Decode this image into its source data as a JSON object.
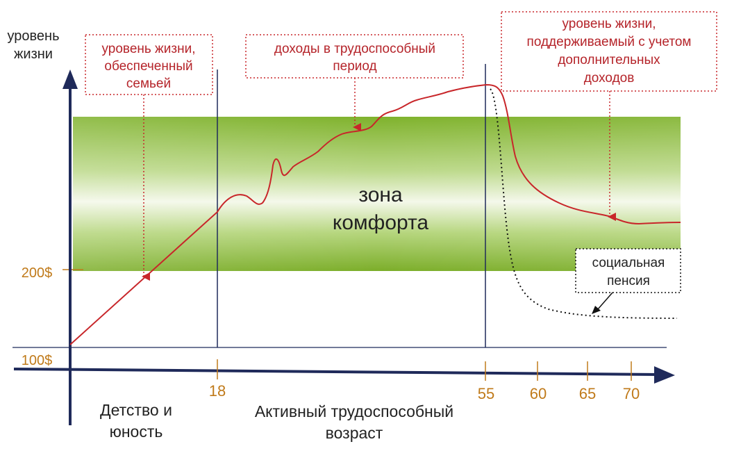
{
  "axes": {
    "y_label_line1": "уровень",
    "y_label_line2": "жизни",
    "y_ticks": [
      "200$",
      "100$"
    ],
    "x_ticks": [
      "18",
      "55",
      "60",
      "65",
      "70"
    ]
  },
  "annotations": {
    "family": [
      "уровень жизни,",
      "обеспеченный",
      "семьей"
    ],
    "income": [
      "доходы в трудоспособный",
      "период"
    ],
    "additional": [
      "уровень жизни,",
      "поддерживаемый с учетом",
      "дополнительных",
      "доходов"
    ],
    "pension": [
      "социальная",
      "пенсия"
    ]
  },
  "zone": [
    "зона",
    "комфорта"
  ],
  "periods": {
    "childhood": [
      "Детство и",
      "юность"
    ],
    "active": [
      "Активный трудоспособный",
      "возраст"
    ]
  },
  "colors": {
    "axis": "#1f2a5a",
    "curve": "#c8262a",
    "annotation_text": "#b5242a",
    "tick_text": "#c07a1a",
    "zone_green": "#8cba3c"
  }
}
